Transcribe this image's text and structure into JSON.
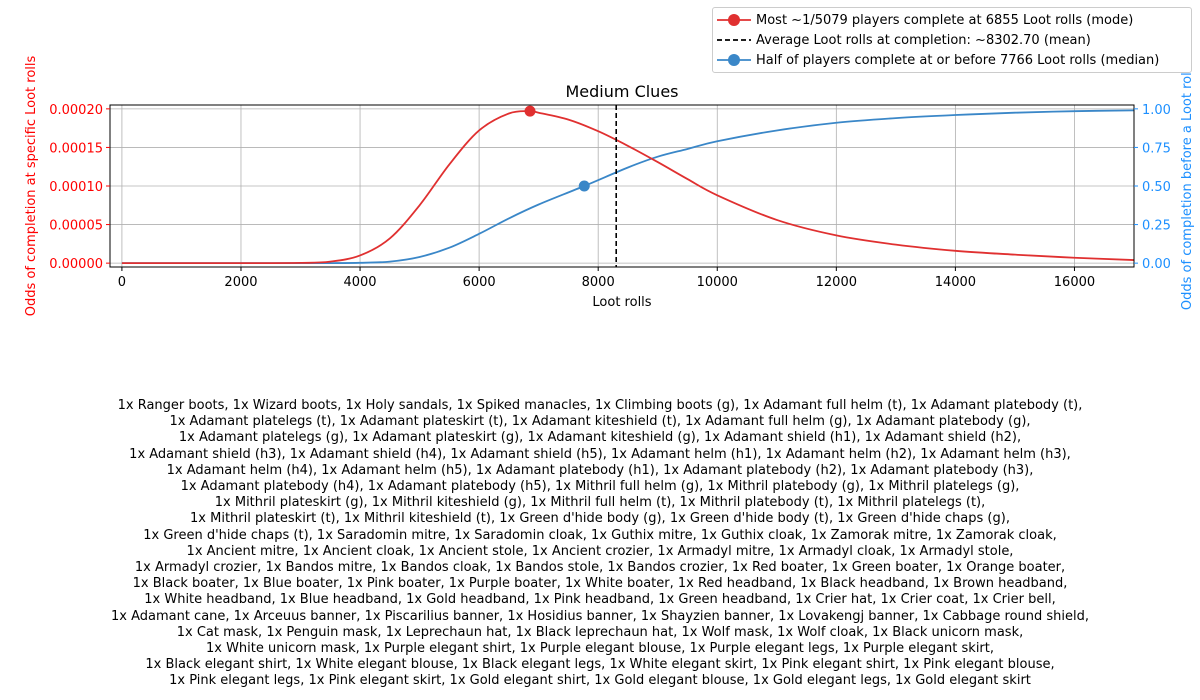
{
  "chart_data": {
    "type": "line",
    "title": "Medium Clues",
    "xlabel": "Loot rolls",
    "ylabel_left": "Odds of completion at specific Loot rolls",
    "ylabel_right": "Odds of completion before a Loot rolls",
    "xlim": [
      -200,
      17000
    ],
    "ylim_left": [
      -5e-06,
      0.000205
    ],
    "ylim_right": [
      -0.025,
      1.025
    ],
    "x_ticks": [
      0,
      2000,
      4000,
      6000,
      8000,
      10000,
      12000,
      14000,
      16000
    ],
    "y_ticks_left": [
      "0.00000",
      "0.00005",
      "0.00010",
      "0.00015",
      "0.00020"
    ],
    "y_ticks_left_values": [
      0,
      5e-05,
      0.0001,
      0.00015,
      0.0002
    ],
    "y_ticks_right": [
      "0.00",
      "0.25",
      "0.50",
      "0.75",
      "1.00"
    ],
    "y_ticks_right_values": [
      0,
      0.25,
      0.5,
      0.75,
      1.0
    ],
    "grid": true,
    "legend_position": "top-right",
    "colors": {
      "pmf": "#e03030",
      "cdf": "#3a87c8",
      "mean": "#000000",
      "left_axis": "#ff0000",
      "right_axis": "#1e90ff"
    },
    "series": [
      {
        "name": "Most ~1/5079 players complete at 6855 Loot rolls (mode)",
        "axis": "left",
        "x": [
          0,
          1000,
          2000,
          3000,
          3500,
          4000,
          4500,
          5000,
          5500,
          6000,
          6500,
          6855,
          7000,
          7500,
          8000,
          8500,
          9000,
          9500,
          10000,
          11000,
          12000,
          13000,
          14000,
          15000,
          16000,
          17000
        ],
        "y": [
          0,
          0,
          0,
          3e-07,
          2e-06,
          1e-05,
          3.2e-05,
          7.5e-05,
          0.000128,
          0.000172,
          0.000194,
          0.000197,
          0.000195,
          0.000186,
          0.000171,
          0.000152,
          0.000131,
          0.000109,
          8.8e-05,
          5.6e-05,
          3.6e-05,
          2.4e-05,
          1.6e-05,
          1.1e-05,
          7e-06,
          4e-06
        ],
        "marker_x": 6855,
        "marker_y": 0.000197
      },
      {
        "name": "Average Loot rolls at completion: ~8302.70 (mean)",
        "type": "vline",
        "x": 8302.7
      },
      {
        "name": "Half of players complete at or before 7766 Loot rolls (median)",
        "axis": "right",
        "x": [
          0,
          1000,
          2000,
          3000,
          3500,
          4000,
          4500,
          5000,
          5500,
          6000,
          6500,
          7000,
          7766,
          8500,
          9000,
          9500,
          10000,
          11000,
          12000,
          13000,
          14000,
          15000,
          16000,
          17000
        ],
        "y": [
          0,
          0,
          0,
          0,
          0.0003,
          0.002,
          0.01,
          0.04,
          0.1,
          0.19,
          0.29,
          0.38,
          0.5,
          0.62,
          0.69,
          0.74,
          0.79,
          0.86,
          0.91,
          0.94,
          0.96,
          0.975,
          0.985,
          0.99
        ],
        "marker_x": 7766,
        "marker_y": 0.5
      }
    ]
  },
  "items_text": [
    "1x Ranger boots, 1x Wizard boots, 1x Holy sandals, 1x Spiked manacles, 1x Climbing boots (g), 1x Adamant full helm (t), 1x Adamant platebody (t),",
    "1x Adamant platelegs (t), 1x Adamant plateskirt (t), 1x Adamant kiteshield (t), 1x Adamant full helm (g), 1x Adamant platebody (g),",
    "1x Adamant platelegs (g), 1x Adamant plateskirt (g), 1x Adamant kiteshield (g), 1x Adamant shield (h1), 1x Adamant shield (h2),",
    "1x Adamant shield (h3), 1x Adamant shield (h4), 1x Adamant shield (h5), 1x Adamant helm (h1), 1x Adamant helm (h2), 1x Adamant helm (h3),",
    "1x Adamant helm (h4), 1x Adamant helm (h5), 1x Adamant platebody (h1), 1x Adamant platebody (h2), 1x Adamant platebody (h3),",
    "1x Adamant platebody (h4), 1x Adamant platebody (h5), 1x Mithril full helm (g), 1x Mithril platebody (g), 1x Mithril platelegs (g),",
    "1x Mithril plateskirt (g), 1x Mithril kiteshield (g), 1x Mithril full helm (t), 1x Mithril platebody (t), 1x Mithril platelegs (t),",
    "1x Mithril plateskirt (t), 1x Mithril kiteshield (t), 1x Green d'hide body (g), 1x Green d'hide body (t), 1x Green d'hide chaps (g),",
    "1x Green d'hide chaps (t), 1x Saradomin mitre, 1x Saradomin cloak, 1x Guthix mitre, 1x Guthix cloak, 1x Zamorak mitre, 1x Zamorak cloak,",
    "1x Ancient mitre, 1x Ancient cloak, 1x Ancient stole, 1x Ancient crozier, 1x Armadyl mitre, 1x Armadyl cloak, 1x Armadyl stole,",
    "1x Armadyl crozier, 1x Bandos mitre, 1x Bandos cloak, 1x Bandos stole, 1x Bandos crozier, 1x Red boater, 1x Green boater, 1x Orange boater,",
    "1x Black boater, 1x Blue boater, 1x Pink boater, 1x Purple boater, 1x White boater, 1x Red headband, 1x Black headband, 1x Brown headband,",
    "1x White headband, 1x Blue headband, 1x Gold headband, 1x Pink headband, 1x Green headband, 1x Crier hat, 1x Crier coat, 1x Crier bell,",
    "1x Adamant cane, 1x Arceuus banner, 1x Piscarilius banner, 1x Hosidius banner, 1x Shayzien banner, 1x Lovakengj banner, 1x Cabbage round shield,",
    "1x Cat mask, 1x Penguin mask, 1x Leprechaun hat, 1x Black leprechaun hat, 1x Wolf mask, 1x Wolf cloak, 1x Black unicorn mask,",
    "1x White unicorn mask, 1x Purple elegant shirt, 1x Purple elegant blouse, 1x Purple elegant legs, 1x Purple elegant skirt,",
    "1x Black elegant shirt, 1x White elegant blouse, 1x Black elegant legs, 1x White elegant skirt, 1x Pink elegant shirt, 1x Pink elegant blouse,",
    "1x Pink elegant legs, 1x Pink elegant skirt, 1x Gold elegant shirt, 1x Gold elegant blouse, 1x Gold elegant legs, 1x Gold elegant skirt"
  ]
}
